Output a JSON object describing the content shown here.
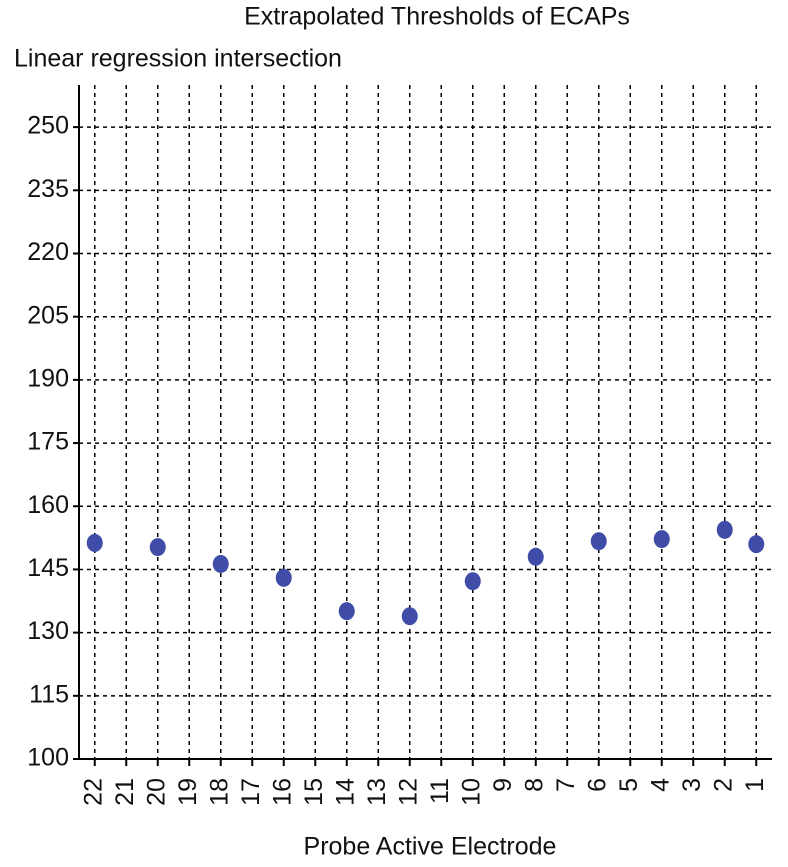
{
  "chart_data": {
    "type": "scatter",
    "title": "Extrapolated Thresholds of ECAPs",
    "y_label": "Linear regression intersection",
    "x_label": "Probe Active Electrode",
    "categories": [
      "22",
      "21",
      "20",
      "19",
      "18",
      "17",
      "16",
      "15",
      "14",
      "13",
      "12",
      "11",
      "10",
      "9",
      "8",
      "7",
      "6",
      "5",
      "4",
      "3",
      "2",
      "1"
    ],
    "values": [
      151.3,
      null,
      150.3,
      null,
      146.3,
      null,
      143,
      null,
      135.1,
      null,
      133.9,
      null,
      142.2,
      null,
      148,
      null,
      151.7,
      null,
      152.2,
      null,
      154.4,
      151
    ],
    "color": "#3f4ca8",
    "ylim": [
      100,
      260
    ],
    "yticks": [
      100,
      115,
      130,
      145,
      160,
      175,
      190,
      205,
      220,
      235,
      250
    ],
    "grid": true
  }
}
